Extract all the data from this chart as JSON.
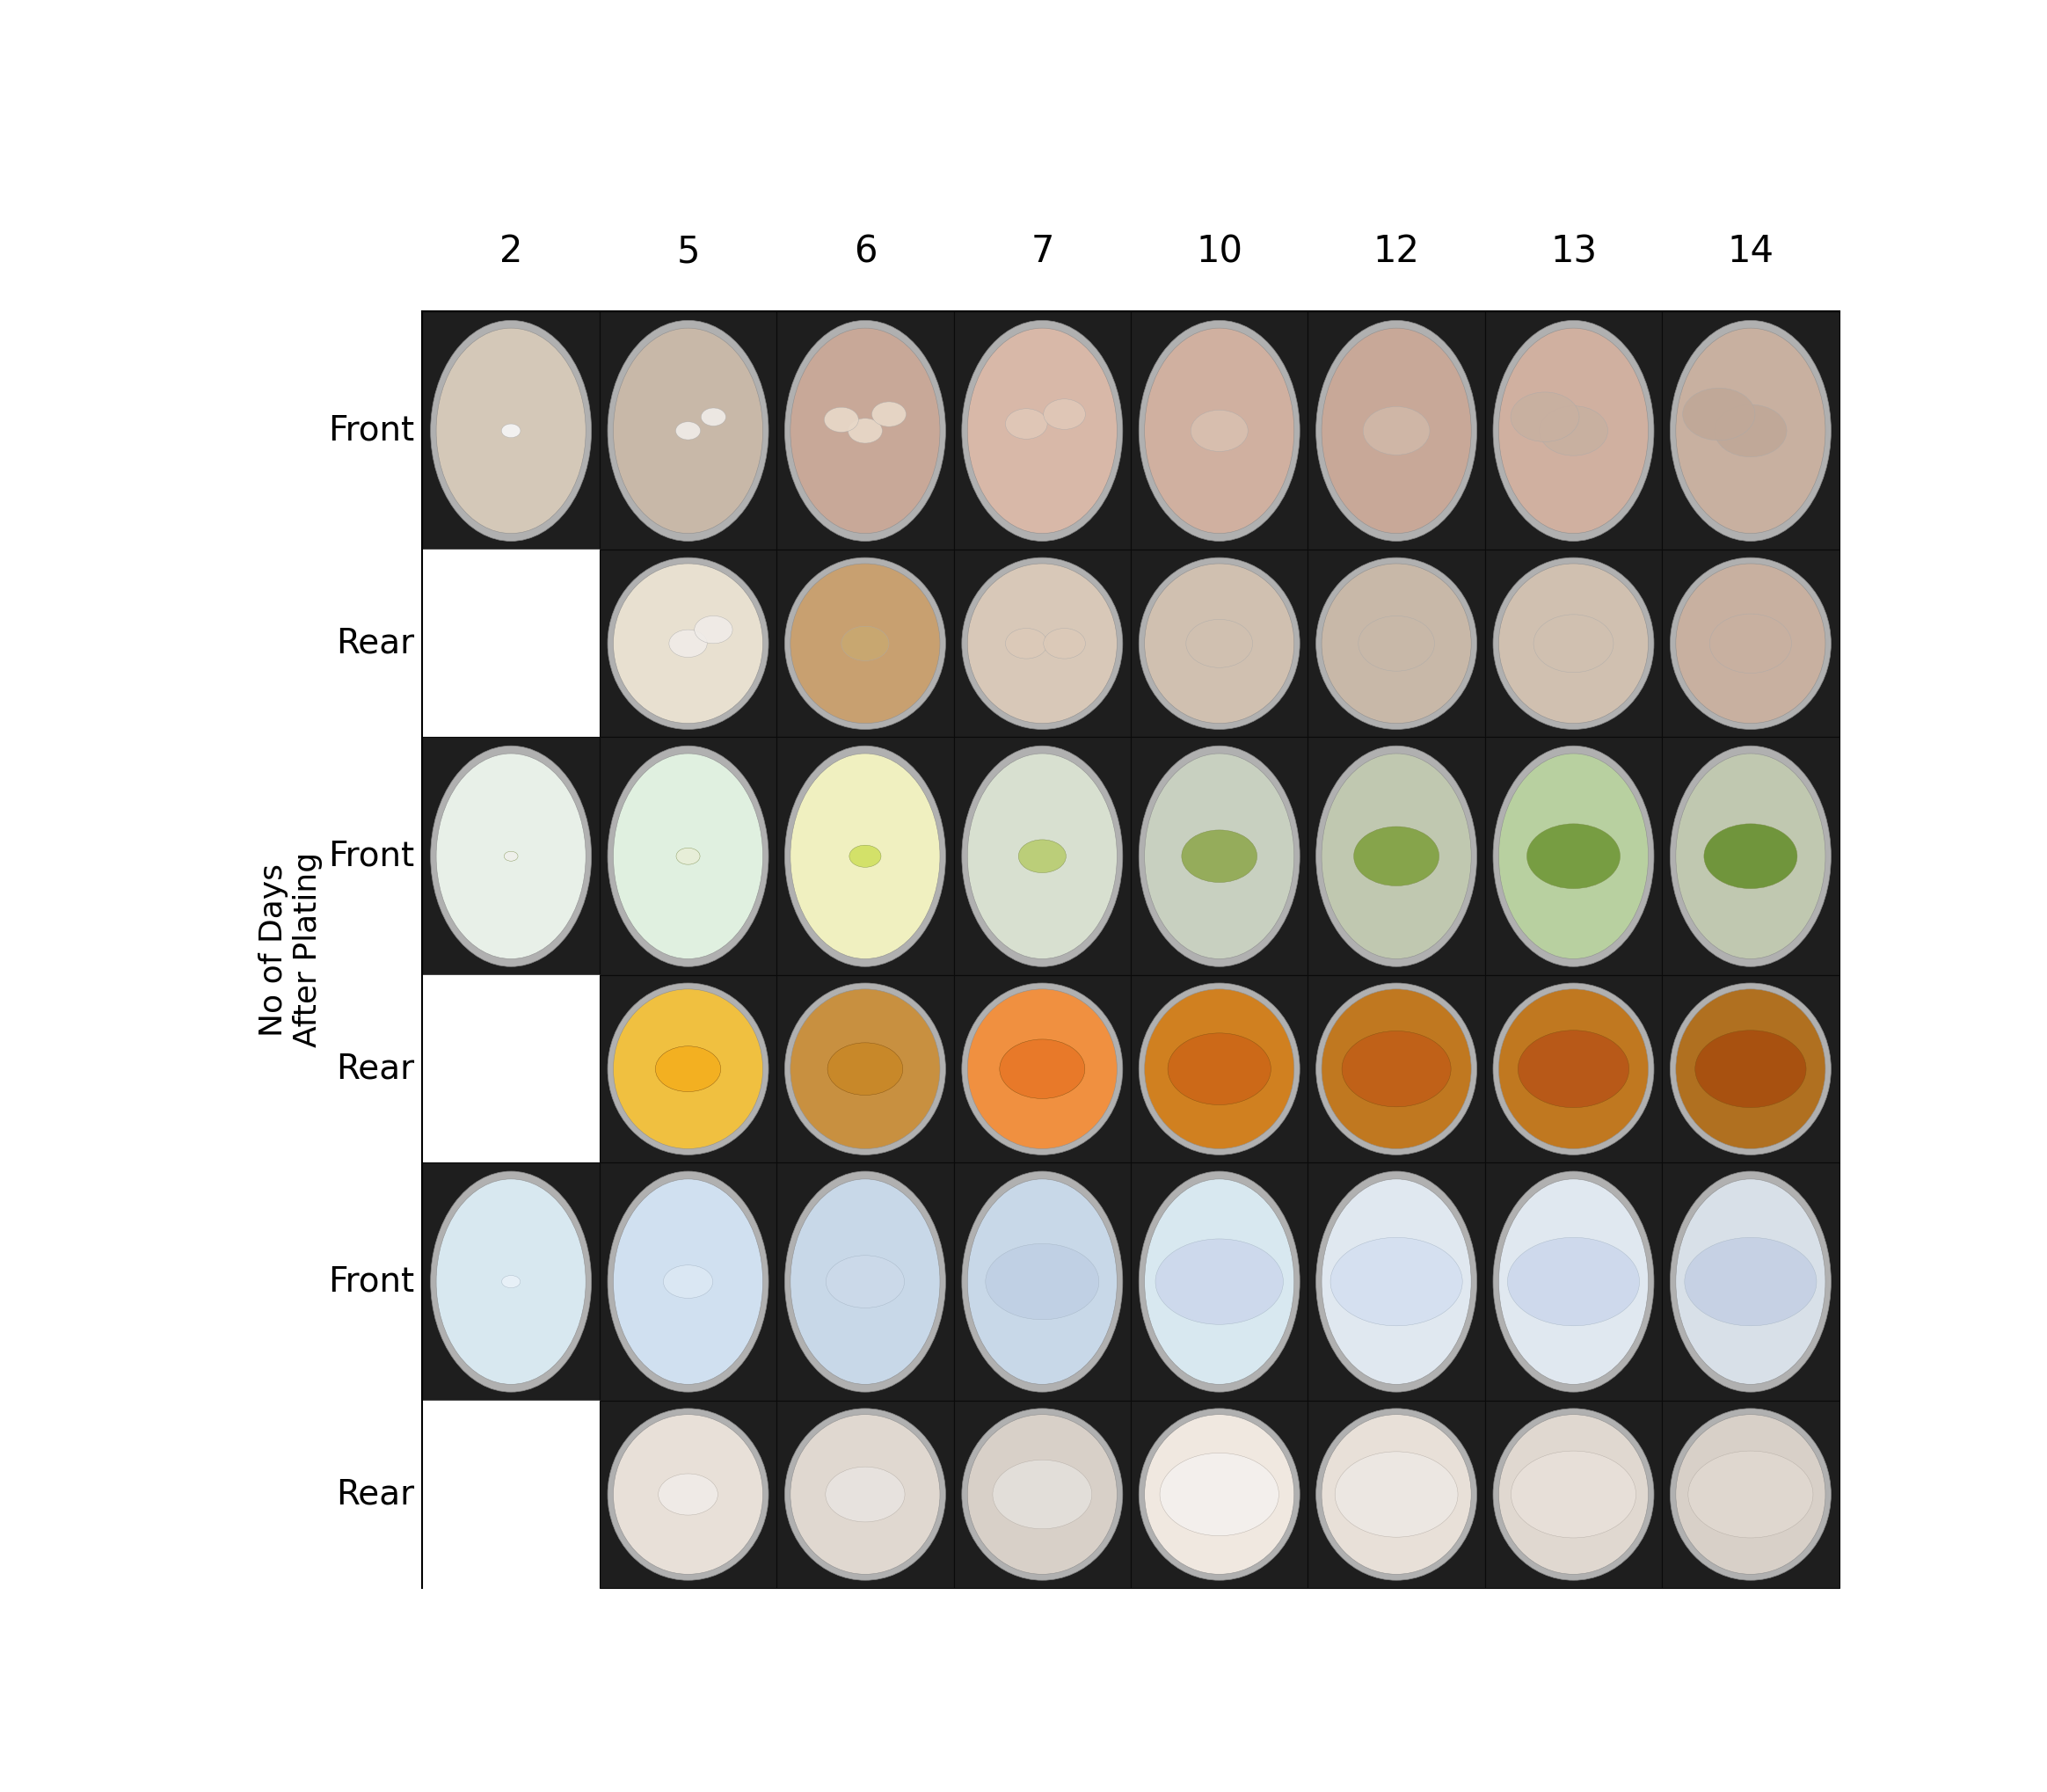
{
  "col_labels": [
    "2",
    "5",
    "6",
    "7",
    "10",
    "12",
    "13",
    "14"
  ],
  "row_labels": [
    "Front",
    "Rear",
    "Front",
    "Rear",
    "Front",
    "Rear"
  ],
  "y_axis_label_line1": "No of Days",
  "y_axis_label_line2": "After Plating",
  "background_color": "#ffffff",
  "label_fontsize": 28,
  "col_label_fontsize": 30,
  "axis_label_fontsize": 26,
  "n_cols": 8,
  "n_rows": 6,
  "petri_colors_front_row1": [
    "#d4c8b8",
    "#c8b8a8",
    "#c8a898",
    "#d8b8a8",
    "#d0b0a0",
    "#c8a898",
    "#d0b0a0",
    "#c8b0a0"
  ],
  "petri_colors_rear_row1": [
    null,
    "#e8e0d0",
    "#c8a070",
    "#d8c8b8",
    "#d0c0b0",
    "#c8b8a8",
    "#d0c0b0",
    "#c8b0a0"
  ],
  "petri_colors_front_row2": [
    "#e8f0e8",
    "#e0f0e0",
    "#f0f0c0",
    "#d8e0d0",
    "#c8d0c0",
    "#c0c8b0",
    "#b8d0a0",
    "#c0c8b0"
  ],
  "petri_colors_rear_row2": [
    null,
    "#f0c040",
    "#c89040",
    "#f09040",
    "#d08020",
    "#c07820",
    "#c07820",
    "#b07020"
  ],
  "petri_colors_front_row3": [
    "#d8e8f0",
    "#d0e0f0",
    "#c8d8e8",
    "#c8d8e8",
    "#d8e8f0",
    "#e0e8f0",
    "#e0e8f0",
    "#d8e0e8"
  ],
  "petri_colors_rear_row3": [
    null,
    "#e8e0d8",
    "#e0d8d0",
    "#d8d0c8",
    "#f0e8e0",
    "#e8e0d8",
    "#e0d8d0",
    "#d8d0c8"
  ]
}
